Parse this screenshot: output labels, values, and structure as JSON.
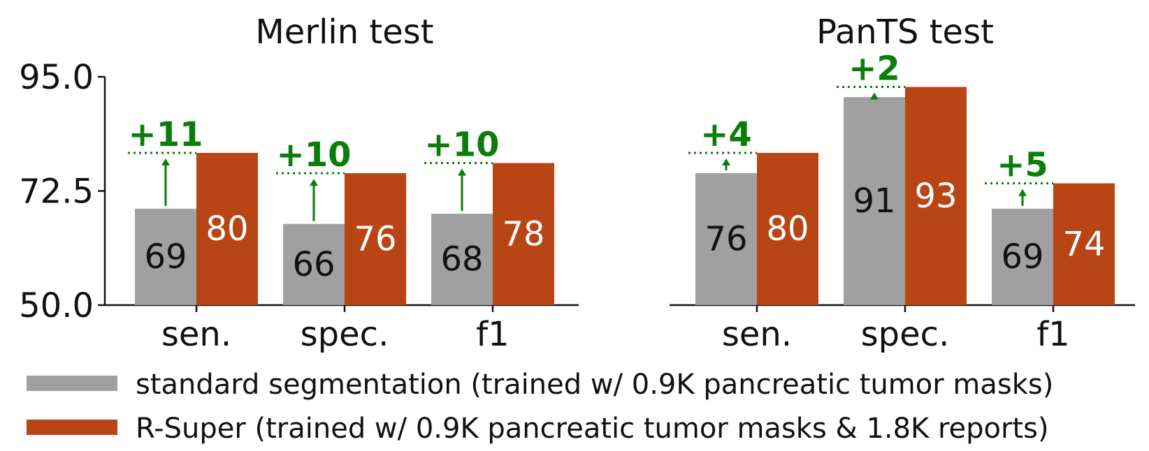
{
  "chart_data": [
    {
      "type": "bar",
      "title": "Merlin test",
      "categories": [
        "sen.",
        "spec.",
        "f1"
      ],
      "series": [
        {
          "name": "standard segmentation (trained w/ 0.9K pancreatic tumor masks)",
          "values": [
            69,
            66,
            68
          ],
          "color": "#a0a0a0",
          "label_color": "#111111"
        },
        {
          "name": "R-Super (trained w/ 0.9K pancreatic tumor masks & 1.8K reports)",
          "values": [
            80,
            76,
            78
          ],
          "color": "#b94414",
          "label_color": "#ffffff"
        }
      ],
      "deltas": [
        "+11",
        "+10",
        "+10"
      ],
      "yticks": [
        "95.0",
        "72.5",
        "50.0"
      ],
      "ylim": [
        50,
        95
      ]
    },
    {
      "type": "bar",
      "title": "PanTS test",
      "categories": [
        "sen.",
        "spec.",
        "f1"
      ],
      "series": [
        {
          "name": "standard segmentation (trained w/ 0.9K pancreatic tumor masks)",
          "values": [
            76,
            91,
            69
          ],
          "color": "#a0a0a0",
          "label_color": "#111111"
        },
        {
          "name": "R-Super (trained w/ 0.9K pancreatic tumor masks & 1.8K reports)",
          "values": [
            80,
            93,
            74
          ],
          "color": "#b94414",
          "label_color": "#ffffff"
        }
      ],
      "deltas": [
        "+4",
        "+2",
        "+5"
      ],
      "ylim": [
        50,
        95
      ]
    }
  ],
  "colors": {
    "delta": "#0a7d0a",
    "axis": "#111111"
  },
  "legend": {
    "placement": "bottom",
    "items": [
      {
        "label": "standard segmentation (trained w/ 0.9K pancreatic tumor masks)",
        "color": "#a0a0a0"
      },
      {
        "label": "R-Super (trained w/ 0.9K pancreatic tumor masks & 1.8K reports)",
        "color": "#b94414"
      }
    ]
  }
}
